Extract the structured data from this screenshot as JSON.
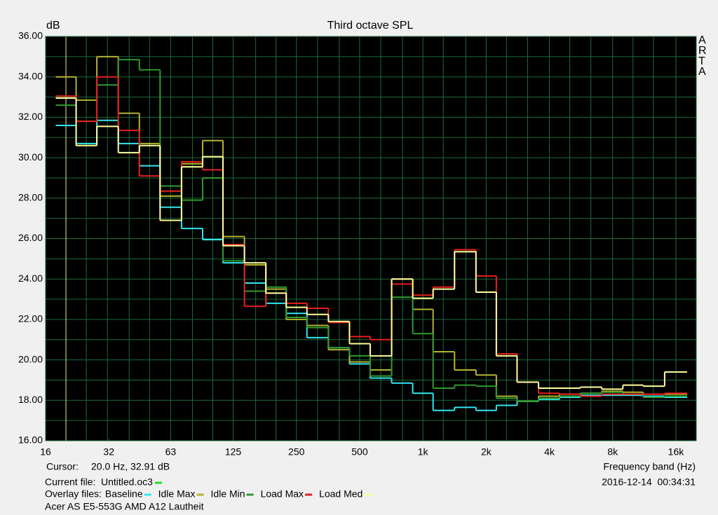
{
  "chart_data": {
    "type": "step",
    "title": "Third octave SPL",
    "y_label": "dB",
    "x_label": "Frequency band (Hz)",
    "side_label": "ARTA",
    "cursor_label": "Cursor:",
    "cursor_text": "20.0 Hz, 32.91 dB",
    "cursor_x": 20,
    "cursor_color": "#e6e68c",
    "current_file_label": "Current file:",
    "current_file": "Untitled.oc3",
    "current_color": "#22dd22",
    "overlay_label": "Overlay files:",
    "timestamp": "2016-12-14  00:34:31",
    "description": "Acer AS E5-553G AMD A12 Lautheit",
    "background": "#000000",
    "grid_color": "#1d6a3c",
    "log_x": true,
    "grid": true,
    "x": [
      20,
      25,
      31.5,
      40,
      50,
      63,
      80,
      100,
      125,
      160,
      200,
      250,
      315,
      400,
      500,
      630,
      800,
      1000,
      1250,
      1600,
      2000,
      2500,
      3150,
      4000,
      5000,
      6300,
      8000,
      10000,
      12500,
      16000
    ],
    "xlim": [
      16,
      20000
    ],
    "xticks": [
      16,
      32,
      63,
      125,
      250,
      500,
      {
        "value": 1000,
        "label": "1k"
      },
      {
        "value": 2000,
        "label": "2k"
      },
      {
        "value": 4000,
        "label": "4k"
      },
      {
        "value": 8000,
        "label": "8k"
      },
      {
        "value": 16000,
        "label": "16k"
      }
    ],
    "ylim": [
      16,
      36
    ],
    "yticks": [
      {
        "value": 16,
        "label": "16.00"
      },
      {
        "value": 18,
        "label": "18.00"
      },
      {
        "value": 20,
        "label": "20.00"
      },
      {
        "value": 22,
        "label": "22.00"
      },
      {
        "value": 24,
        "label": "24.00"
      },
      {
        "value": 26,
        "label": "26.00"
      },
      {
        "value": 28,
        "label": "28.00"
      },
      {
        "value": 30,
        "label": "30.00"
      },
      {
        "value": 32,
        "label": "32.00"
      },
      {
        "value": 34,
        "label": "34.00"
      },
      {
        "value": 36,
        "label": "36.00"
      }
    ],
    "series": [
      {
        "name": "Baseline",
        "color": "#33e6f0",
        "values": [
          31.6,
          30.7,
          31.85,
          30.7,
          29.6,
          27.55,
          26.5,
          25.95,
          24.8,
          23.8,
          22.8,
          22.3,
          21.1,
          20.6,
          19.8,
          19.1,
          18.85,
          18.35,
          17.5,
          17.65,
          17.5,
          17.75,
          17.95,
          18.05,
          18.15,
          18.25,
          18.25,
          18.25,
          18.2,
          18.15
        ]
      },
      {
        "name": "Idle Max",
        "color": "#b4b432",
        "values": [
          34.0,
          32.85,
          35.0,
          32.2,
          30.7,
          28.1,
          29.7,
          30.85,
          26.1,
          24.7,
          23.5,
          22.0,
          21.7,
          20.5,
          19.9,
          19.5,
          24.0,
          22.5,
          20.4,
          19.5,
          19.25,
          18.2,
          17.95,
          18.2,
          18.3,
          18.35,
          18.45,
          18.4,
          18.3,
          18.3
        ]
      },
      {
        "name": "Idle Min",
        "color": "#2e9a2e",
        "values": [
          32.6,
          31.8,
          33.6,
          34.85,
          34.35,
          28.6,
          27.9,
          29.0,
          24.9,
          23.4,
          23.6,
          22.1,
          21.6,
          20.6,
          20.2,
          19.2,
          23.1,
          21.3,
          18.6,
          18.75,
          18.7,
          18.1,
          17.95,
          18.1,
          18.2,
          18.35,
          18.4,
          18.3,
          18.15,
          18.2
        ]
      },
      {
        "name": "Load Max",
        "color": "#e61e1e",
        "values": [
          33.05,
          31.8,
          34.0,
          31.35,
          29.1,
          28.35,
          29.8,
          29.4,
          25.7,
          22.65,
          23.3,
          22.8,
          22.55,
          21.85,
          21.15,
          21.0,
          23.75,
          23.2,
          23.6,
          25.45,
          24.15,
          20.3,
          18.9,
          18.35,
          18.3,
          18.2,
          18.3,
          18.3,
          18.3,
          18.35
        ]
      },
      {
        "name": "Load Med",
        "color": "#ffff9a",
        "values": [
          32.95,
          30.6,
          31.55,
          30.25,
          30.6,
          26.9,
          29.55,
          30.05,
          25.65,
          24.8,
          23.3,
          22.6,
          22.25,
          21.9,
          20.8,
          20.2,
          24.0,
          23.05,
          23.5,
          25.35,
          23.35,
          20.2,
          18.9,
          18.6,
          18.6,
          18.65,
          18.55,
          18.75,
          18.7,
          19.4
        ]
      }
    ]
  }
}
